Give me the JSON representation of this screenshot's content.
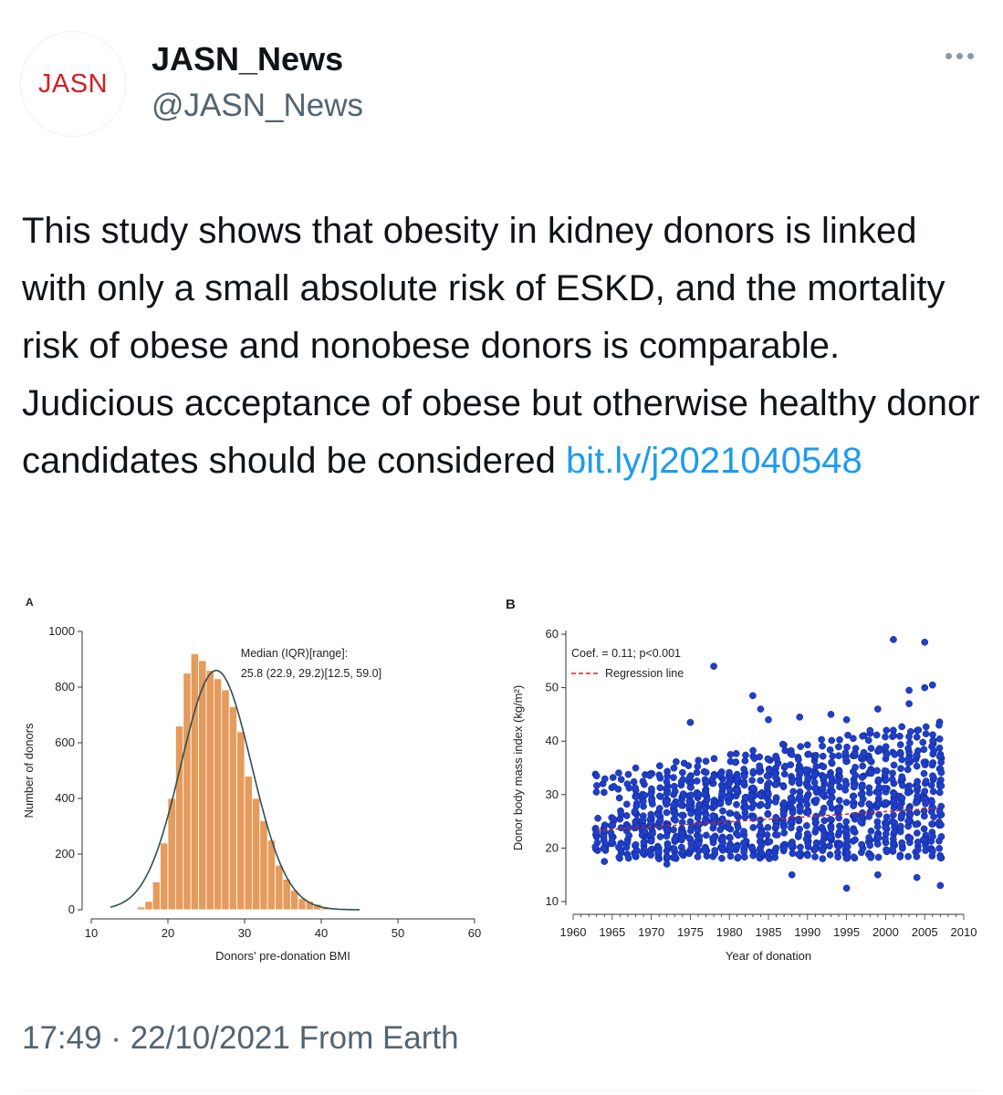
{
  "account": {
    "logo_text": "JASN",
    "display_name": "JASN_News",
    "handle": "@JASN_News"
  },
  "tweet": {
    "text": "This study shows that obesity in kidney donors is linked with only a small absolute risk of ESKD, and the mortality risk of obese and nonobese donors is comparable. Judicious acceptance of obese but otherwise healthy donor candidates should be considered ",
    "link": "bit.ly/j2021040548",
    "timestamp": "17:49 · 22/10/2021 From Earth"
  },
  "colors": {
    "link": "#1d9bf0",
    "logo": "#d31f26",
    "bar": "#e59b5c",
    "scatter": "#1f3fc8",
    "regression": "#d32020"
  },
  "chart_data": [
    {
      "panel": "A",
      "type": "bar",
      "xlabel": "Donors' pre-donation BMI",
      "ylabel": "Number of donors",
      "xlim": [
        10,
        60
      ],
      "ylim": [
        0,
        1000
      ],
      "xticks": [
        10,
        20,
        30,
        40,
        50,
        60
      ],
      "yticks": [
        0,
        200,
        400,
        600,
        800,
        1000
      ],
      "annotation": [
        "Median (IQR)[range]:",
        "25.8 (22.9, 29.2)[12.5, 59.0]"
      ],
      "bin_width": 1,
      "bins": [
        16,
        17,
        18,
        19,
        20,
        21,
        22,
        23,
        24,
        25,
        26,
        27,
        28,
        29,
        30,
        31,
        32,
        33,
        34,
        35,
        36,
        37,
        38,
        39,
        40,
        41,
        42
      ],
      "values": [
        10,
        30,
        100,
        240,
        400,
        660,
        850,
        920,
        895,
        860,
        830,
        790,
        730,
        640,
        480,
        400,
        320,
        250,
        160,
        110,
        70,
        40,
        30,
        20,
        10,
        5,
        3
      ],
      "normal_curve": {
        "mean": 26.3,
        "sd": 4.6,
        "peak": 860
      }
    },
    {
      "panel": "B",
      "type": "scatter",
      "xlabel": "Year of donation",
      "ylabel": "Donor body mass index (kg/m²)",
      "xlim": [
        1960,
        2010
      ],
      "ylim": [
        10,
        60
      ],
      "xticks": [
        1960,
        1965,
        1970,
        1975,
        1980,
        1985,
        1990,
        1995,
        2000,
        2005,
        2010
      ],
      "yticks": [
        10,
        20,
        30,
        40,
        50,
        60
      ],
      "legend": [
        "Coef. = 0.11; p<0.001",
        "Regression line"
      ],
      "regression": {
        "x": [
          1963,
          2007
        ],
        "y": [
          23.3,
          27.5
        ]
      },
      "x_range": [
        1963,
        2007
      ],
      "band_low": [
        18,
        29
      ],
      "band_high": [
        30,
        40
      ],
      "outliers": [
        {
          "x": 1963,
          "y": 33.5
        },
        {
          "x": 1975,
          "y": 43.5
        },
        {
          "x": 1978,
          "y": 54
        },
        {
          "x": 1983,
          "y": 48.5
        },
        {
          "x": 1984,
          "y": 46
        },
        {
          "x": 1985,
          "y": 44
        },
        {
          "x": 1989,
          "y": 44.5
        },
        {
          "x": 1993,
          "y": 45
        },
        {
          "x": 1995,
          "y": 44
        },
        {
          "x": 1998,
          "y": 42
        },
        {
          "x": 1999,
          "y": 46
        },
        {
          "x": 2001,
          "y": 59
        },
        {
          "x": 2003,
          "y": 47
        },
        {
          "x": 2003,
          "y": 49.5
        },
        {
          "x": 2005,
          "y": 58.5
        },
        {
          "x": 2005,
          "y": 50
        },
        {
          "x": 2006,
          "y": 50.5
        },
        {
          "x": 2007,
          "y": 13
        },
        {
          "x": 1995,
          "y": 12.5
        },
        {
          "x": 1988,
          "y": 15
        },
        {
          "x": 1999,
          "y": 15
        },
        {
          "x": 2004,
          "y": 14.5
        },
        {
          "x": 1972,
          "y": 17
        },
        {
          "x": 1964,
          "y": 17.5
        }
      ]
    }
  ]
}
